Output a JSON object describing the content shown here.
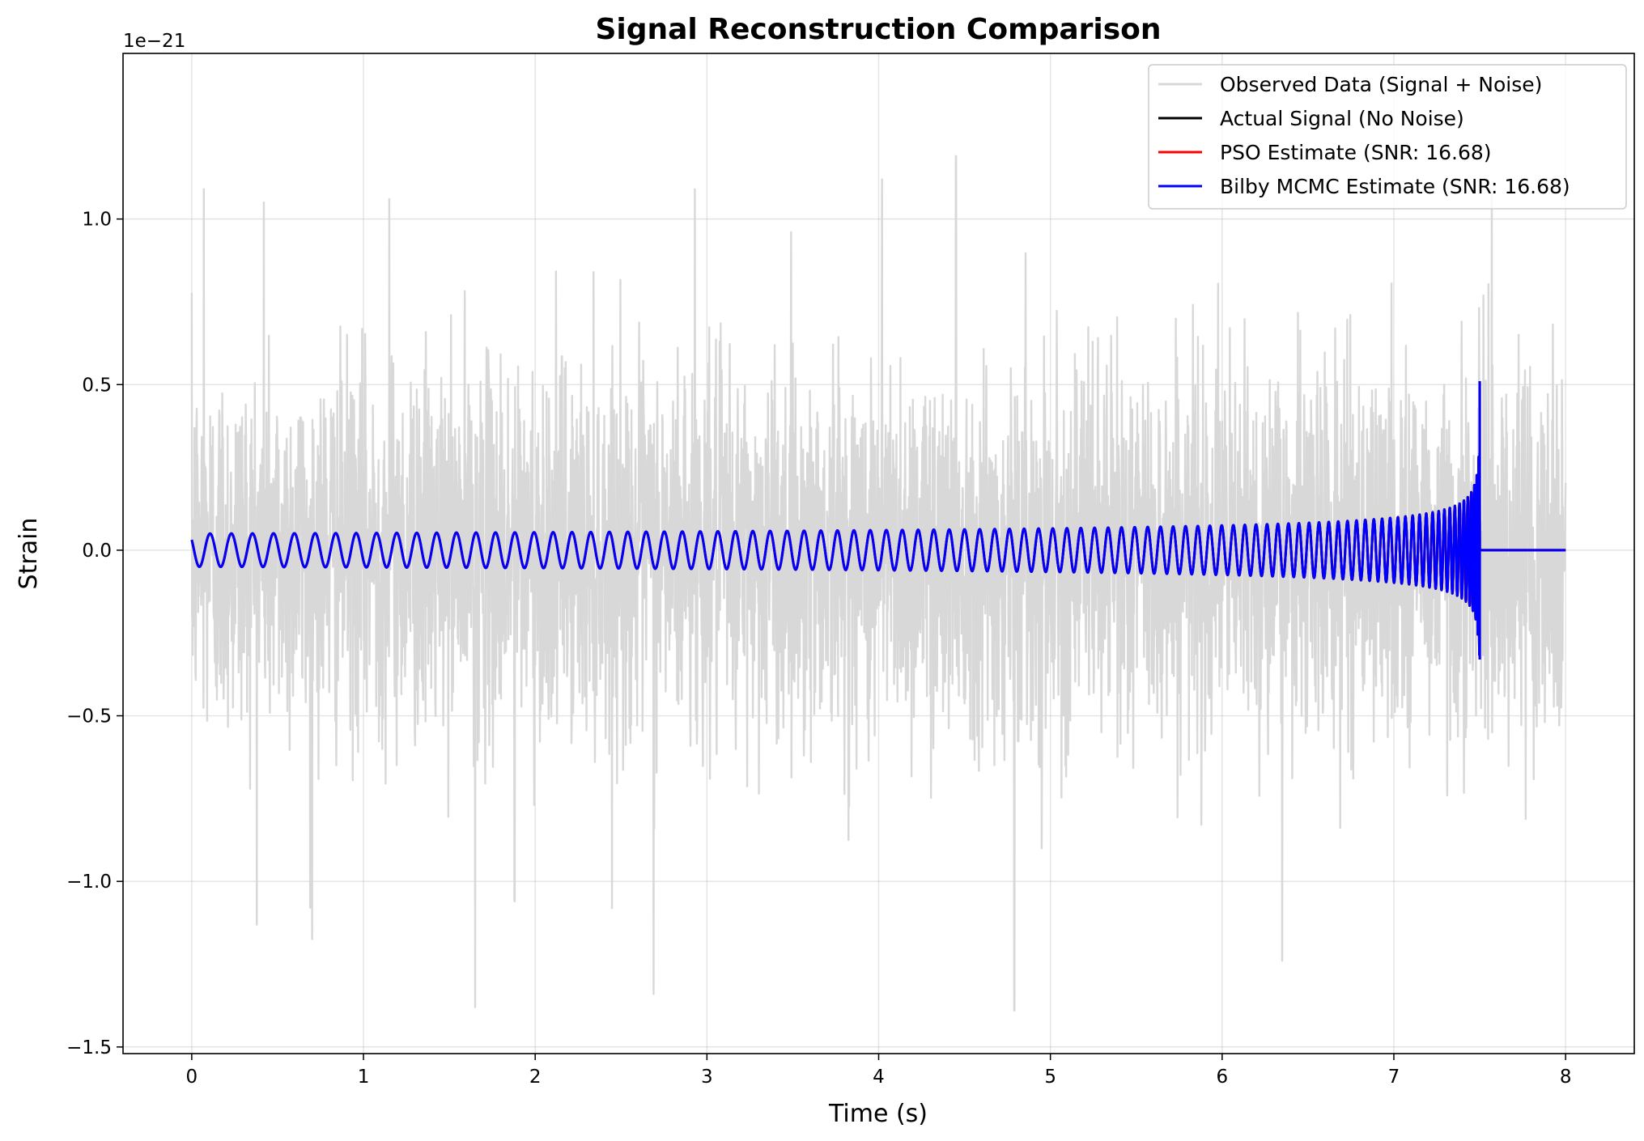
{
  "chart_data": {
    "type": "line",
    "title": "Signal Reconstruction Comparison",
    "xlabel": "Time (s)",
    "ylabel": "Strain",
    "y_offset_label": "1e−21",
    "xlim": [
      -0.4,
      8.4
    ],
    "ylim": [
      -1.52,
      1.5
    ],
    "x_ticks": [
      0,
      1,
      2,
      3,
      4,
      5,
      6,
      7,
      8
    ],
    "x_tick_labels": [
      "0",
      "1",
      "2",
      "3",
      "4",
      "5",
      "6",
      "7",
      "8"
    ],
    "y_ticks": [
      -1.5,
      -1.0,
      -0.5,
      0.0,
      0.5,
      1.0
    ],
    "y_tick_labels": [
      "−1.5",
      "−1.0",
      "−0.5",
      "0.0",
      "0.5",
      "1.0"
    ],
    "grid": true,
    "legend_position": "top-right",
    "series": [
      {
        "name": "Observed Data (Signal + Noise)",
        "color": "#d8d8d8",
        "kind": "noisy_observation",
        "x_range": [
          0,
          8
        ],
        "approx_peak_values": [
          {
            "x": 0.07,
            "y": 1.09
          },
          {
            "x": 0.42,
            "y": 1.05
          },
          {
            "x": 0.69,
            "y": -1.08
          },
          {
            "x": 1.15,
            "y": 1.06
          },
          {
            "x": 1.65,
            "y": -1.38
          },
          {
            "x": 1.88,
            "y": -1.06
          },
          {
            "x": 2.69,
            "y": -1.34
          },
          {
            "x": 2.93,
            "y": 1.09
          },
          {
            "x": 4.02,
            "y": 1.12
          },
          {
            "x": 4.45,
            "y": 1.19
          },
          {
            "x": 4.79,
            "y": -1.39
          },
          {
            "x": 6.35,
            "y": -1.24
          },
          {
            "x": 7.57,
            "y": 1.08
          }
        ]
      },
      {
        "name": "Actual Signal (No Noise)",
        "color": "#000000",
        "kind": "chirp",
        "x_range": [
          0,
          8
        ],
        "merger_time": 7.5,
        "base_amplitude": 0.05,
        "peak_max": 0.51,
        "peak_min": -0.33,
        "after_merger_value": 0.0
      },
      {
        "name": "PSO Estimate (SNR: 16.68)",
        "color": "#ff0000",
        "kind": "chirp",
        "x_range": [
          0,
          8
        ],
        "merger_time": 7.5,
        "base_amplitude": 0.05,
        "peak_max": 0.51,
        "peak_min": -0.33,
        "after_merger_value": 0.0
      },
      {
        "name": "Bilby MCMC Estimate (SNR: 16.68)",
        "color": "#0000ff",
        "kind": "chirp",
        "x_range": [
          0,
          8
        ],
        "merger_time": 7.5,
        "base_amplitude": 0.05,
        "peak_max": 0.51,
        "peak_min": -0.33,
        "after_merger_value": 0.0
      }
    ]
  }
}
